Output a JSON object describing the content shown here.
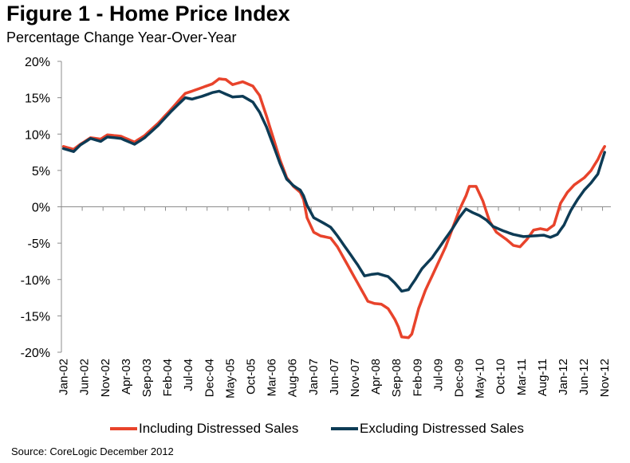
{
  "title": "Figure 1 - Home Price Index",
  "subtitle": "Percentage Change Year-Over-Year",
  "source": "Source: CoreLogic December 2012",
  "colors": {
    "including": "#e8432b",
    "excluding": "#0d3b55",
    "axis": "#8c8c8c"
  },
  "legend": [
    {
      "label": "Including Distressed Sales",
      "color": "#e8432b"
    },
    {
      "label": "Excluding Distressed Sales",
      "color": "#0d3b55"
    }
  ],
  "chart_data": {
    "type": "line",
    "title": "Figure 1 - Home Price Index",
    "subtitle": "Percentage Change Year-Over-Year",
    "xlabel": "",
    "ylabel": "",
    "ylim": [
      -20,
      20
    ],
    "yticks": [
      20,
      15,
      10,
      5,
      0,
      -5,
      -10,
      -15,
      -20
    ],
    "ytick_labels": [
      "20%",
      "15%",
      "10%",
      "5%",
      "0%",
      "-5%",
      "-10%",
      "-15%",
      "-20%"
    ],
    "x_start": "Jan-02",
    "x_end": "Dec-12",
    "x_frequency": "monthly",
    "xtick_labels": [
      "Jan-02",
      "Jun-02",
      "Nov-02",
      "Apr-03",
      "Sep-03",
      "Feb-04",
      "Jul-04",
      "Dec-04",
      "May-05",
      "Oct-05",
      "Mar-06",
      "Aug-06",
      "Jan-07",
      "Jun-07",
      "Nov-07",
      "Apr-08",
      "Sep-08",
      "Feb-09",
      "Jul-09",
      "Dec-09",
      "May-10",
      "Oct-10",
      "Mar-11",
      "Aug-11",
      "Jan-12",
      "Jun-12",
      "Nov-12"
    ],
    "grid": false,
    "legend_position": "bottom",
    "series": [
      {
        "name": "Including Distressed Sales",
        "color": "#e8432b",
        "keypoints": [
          [
            0,
            8.3
          ],
          [
            3,
            7.9
          ],
          [
            5,
            8.6
          ],
          [
            8,
            9.5
          ],
          [
            11,
            9.3
          ],
          [
            13,
            9.9
          ],
          [
            17,
            9.7
          ],
          [
            21,
            8.9
          ],
          [
            24,
            9.8
          ],
          [
            28,
            11.5
          ],
          [
            32,
            13.5
          ],
          [
            36,
            15.6
          ],
          [
            38,
            15.9
          ],
          [
            41,
            16.4
          ],
          [
            44,
            16.9
          ],
          [
            46,
            17.6
          ],
          [
            48,
            17.5
          ],
          [
            50,
            16.8
          ],
          [
            53,
            17.2
          ],
          [
            56,
            16.6
          ],
          [
            58,
            15.3
          ],
          [
            60,
            12.5
          ],
          [
            62,
            9.5
          ],
          [
            64,
            6.5
          ],
          [
            66,
            4.0
          ],
          [
            68,
            2.8
          ],
          [
            70,
            2.0
          ],
          [
            71,
            1.0
          ],
          [
            72,
            -1.5
          ],
          [
            74,
            -3.5
          ],
          [
            76,
            -4.0
          ],
          [
            79,
            -4.3
          ],
          [
            81,
            -5.5
          ],
          [
            84,
            -8.0
          ],
          [
            87,
            -10.5
          ],
          [
            90,
            -13.0
          ],
          [
            92,
            -13.3
          ],
          [
            94,
            -13.4
          ],
          [
            96,
            -14.0
          ],
          [
            98,
            -15.5
          ],
          [
            99,
            -16.5
          ],
          [
            100,
            -17.9
          ],
          [
            102,
            -18.0
          ],
          [
            103,
            -17.5
          ],
          [
            105,
            -14.0
          ],
          [
            107,
            -11.5
          ],
          [
            110,
            -8.5
          ],
          [
            113,
            -5.5
          ],
          [
            115,
            -3.0
          ],
          [
            117,
            -0.5
          ],
          [
            119,
            1.5
          ],
          [
            120,
            2.8
          ],
          [
            122,
            2.8
          ],
          [
            124,
            0.8
          ],
          [
            126,
            -2.0
          ],
          [
            128,
            -3.5
          ],
          [
            131,
            -4.5
          ],
          [
            133,
            -5.3
          ],
          [
            135,
            -5.5
          ],
          [
            137,
            -4.5
          ],
          [
            139,
            -3.2
          ],
          [
            141,
            -3.0
          ],
          [
            143,
            -3.2
          ],
          [
            145,
            -2.5
          ],
          [
            147,
            0.5
          ],
          [
            149,
            2.0
          ],
          [
            151,
            3.0
          ],
          [
            154,
            4.0
          ],
          [
            156,
            5.0
          ],
          [
            158,
            6.5
          ],
          [
            159,
            7.5
          ],
          [
            160,
            8.3
          ]
        ]
      },
      {
        "name": "Excluding Distressed Sales",
        "color": "#0d3b55",
        "keypoints": [
          [
            0,
            8.0
          ],
          [
            3,
            7.6
          ],
          [
            5,
            8.5
          ],
          [
            8,
            9.4
          ],
          [
            11,
            9.0
          ],
          [
            13,
            9.6
          ],
          [
            17,
            9.4
          ],
          [
            21,
            8.6
          ],
          [
            24,
            9.5
          ],
          [
            28,
            11.2
          ],
          [
            32,
            13.2
          ],
          [
            36,
            15.0
          ],
          [
            38,
            14.8
          ],
          [
            41,
            15.2
          ],
          [
            44,
            15.7
          ],
          [
            46,
            15.9
          ],
          [
            48,
            15.5
          ],
          [
            50,
            15.1
          ],
          [
            53,
            15.2
          ],
          [
            56,
            14.4
          ],
          [
            58,
            13.0
          ],
          [
            60,
            11.0
          ],
          [
            62,
            8.5
          ],
          [
            64,
            6.0
          ],
          [
            66,
            3.8
          ],
          [
            68,
            2.9
          ],
          [
            70,
            2.3
          ],
          [
            71,
            1.5
          ],
          [
            72,
            0.2
          ],
          [
            74,
            -1.5
          ],
          [
            76,
            -2.0
          ],
          [
            79,
            -2.8
          ],
          [
            81,
            -4.0
          ],
          [
            84,
            -6.0
          ],
          [
            87,
            -8.0
          ],
          [
            89,
            -9.5
          ],
          [
            91,
            -9.3
          ],
          [
            93,
            -9.2
          ],
          [
            96,
            -9.6
          ],
          [
            98,
            -10.5
          ],
          [
            100,
            -11.6
          ],
          [
            102,
            -11.4
          ],
          [
            104,
            -10.0
          ],
          [
            106,
            -8.5
          ],
          [
            109,
            -7.0
          ],
          [
            112,
            -5.0
          ],
          [
            115,
            -3.0
          ],
          [
            117,
            -1.5
          ],
          [
            119,
            -0.3
          ],
          [
            121,
            -0.8
          ],
          [
            123,
            -1.2
          ],
          [
            125,
            -1.8
          ],
          [
            127,
            -2.7
          ],
          [
            130,
            -3.3
          ],
          [
            133,
            -3.8
          ],
          [
            136,
            -4.1
          ],
          [
            139,
            -4.0
          ],
          [
            142,
            -3.9
          ],
          [
            144,
            -4.2
          ],
          [
            146,
            -3.8
          ],
          [
            148,
            -2.5
          ],
          [
            150,
            -0.5
          ],
          [
            152,
            1.0
          ],
          [
            154,
            2.3
          ],
          [
            156,
            3.3
          ],
          [
            158,
            4.5
          ],
          [
            159,
            6.0
          ],
          [
            160,
            7.5
          ]
        ]
      }
    ]
  }
}
